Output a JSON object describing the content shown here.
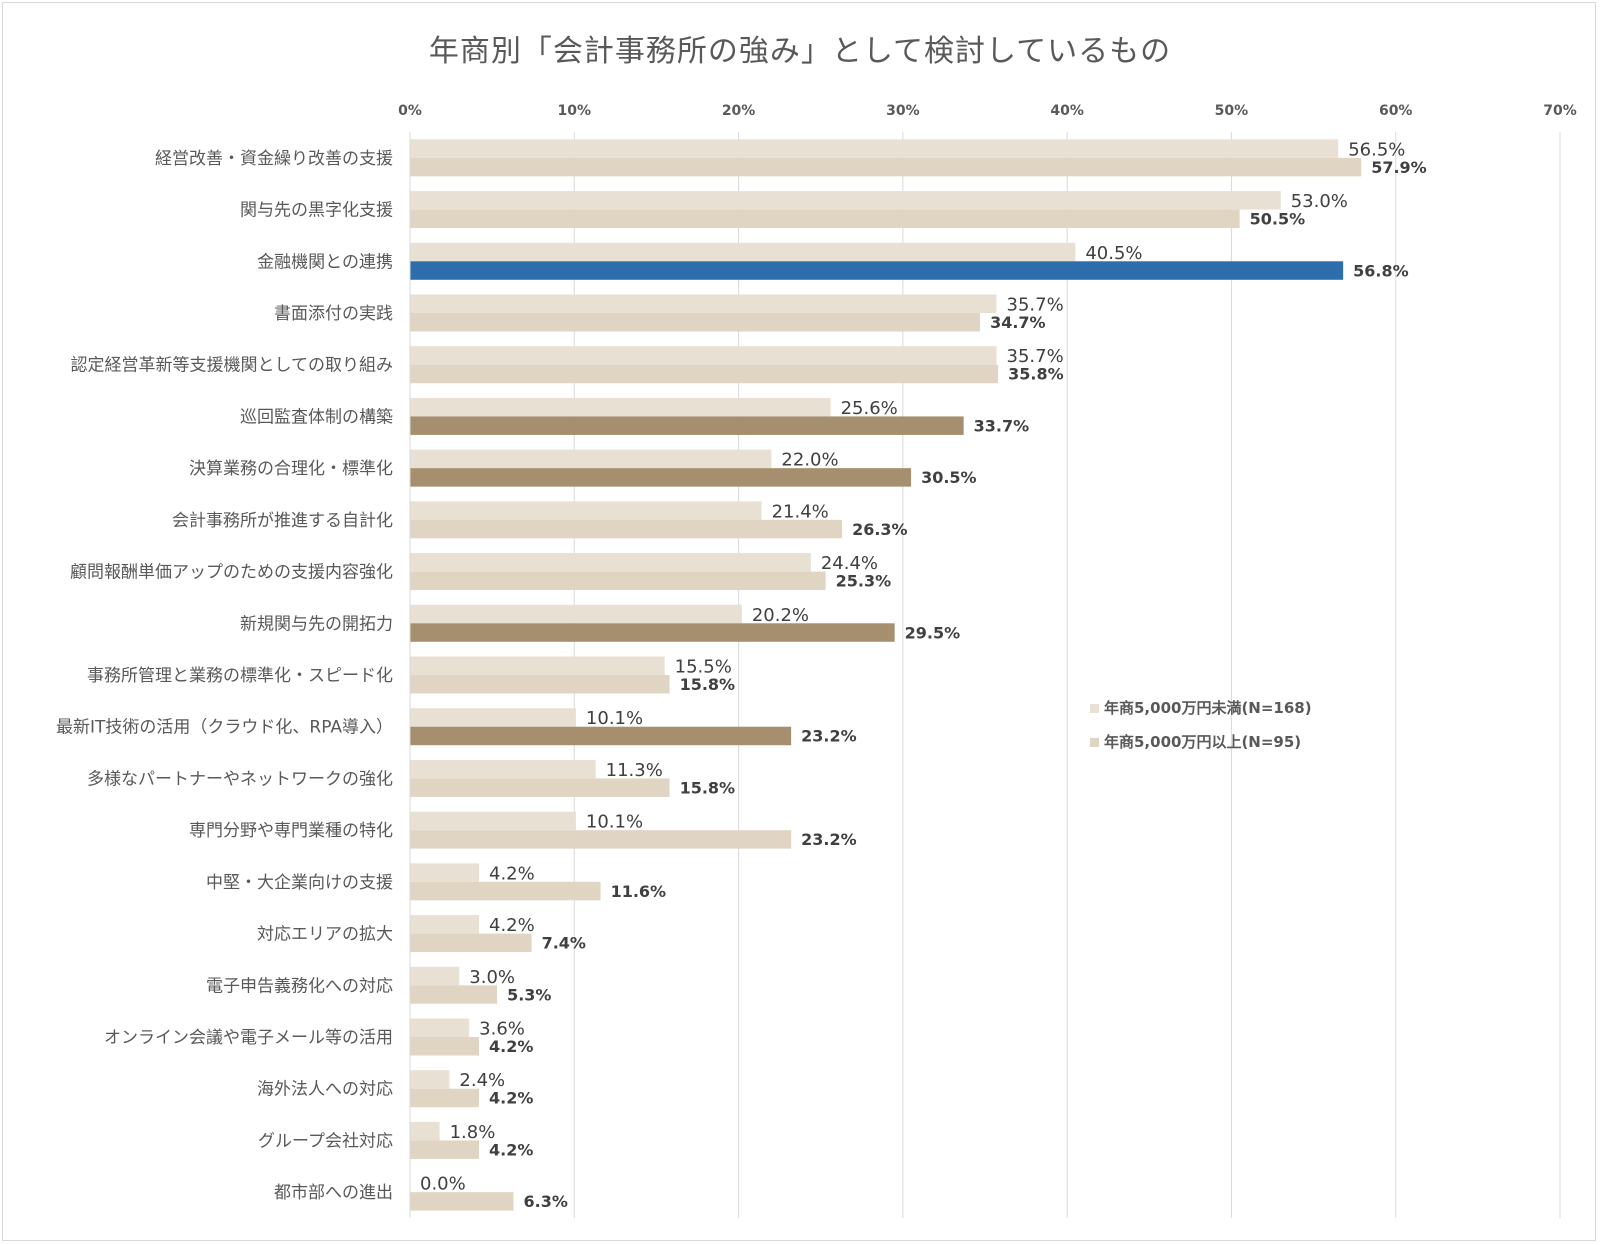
{
  "chart_data": {
    "type": "bar",
    "orientation": "horizontal",
    "title": "年商別「会計事務所の強み」として検討しているもの",
    "xlim": [
      0,
      70
    ],
    "x_ticks": [
      "0%",
      "10%",
      "20%",
      "30%",
      "40%",
      "50%",
      "60%",
      "70%"
    ],
    "grid": true,
    "legend_position": "right",
    "categories": [
      "経営改善・資金繰り改善の支援",
      "関与先の黒字化支援",
      "金融機関との連携",
      "書面添付の実践",
      "認定経営革新等支援機関としての取り組み",
      "巡回監査体制の構築",
      "決算業務の合理化・標準化",
      "会計事務所が推進する自計化",
      "顧問報酬単価アップのための支援内容強化",
      "新規関与先の開拓力",
      "事務所管理と業務の標準化・スピード化",
      "最新IT技術の活用（クラウド化、RPA導入）",
      "多様なパートナーやネットワークの強化",
      "専門分野や専門業種の特化",
      "中堅・大企業向けの支援",
      "対応エリアの拡大",
      "電子申告義務化への対応",
      "オンライン会議や電子メール等の活用",
      "海外法人への対応",
      "グループ会社対応",
      "都市部への進出"
    ],
    "series": [
      {
        "name": "年商5,000万円未満(N=168)",
        "values": [
          56.5,
          53.0,
          40.5,
          35.7,
          35.7,
          25.6,
          22.0,
          21.4,
          24.4,
          20.2,
          15.5,
          10.1,
          11.3,
          10.1,
          4.2,
          4.2,
          3.0,
          3.6,
          2.4,
          1.8,
          0.0
        ],
        "labels": [
          "56.5%",
          "53.0%",
          "40.5%",
          "35.7%",
          "35.7%",
          "25.6%",
          "22.0%",
          "21.4%",
          "24.4%",
          "20.2%",
          "15.5%",
          "10.1%",
          "11.3%",
          "10.1%",
          "4.2%",
          "4.2%",
          "3.0%",
          "3.6%",
          "2.4%",
          "1.8%",
          "0.0%"
        ],
        "color": "#e8e0d3"
      },
      {
        "name": "年商5,000万円以上(N=95)",
        "values": [
          57.9,
          50.5,
          56.8,
          34.7,
          35.8,
          33.7,
          30.5,
          26.3,
          25.3,
          29.5,
          15.8,
          23.2,
          15.8,
          23.2,
          11.6,
          7.4,
          5.3,
          4.2,
          4.2,
          4.2,
          6.3
        ],
        "labels": [
          "57.9%",
          "50.5%",
          "56.8%",
          "34.7%",
          "35.8%",
          "33.7%",
          "30.5%",
          "26.3%",
          "25.3%",
          "29.5%",
          "15.8%",
          "23.2%",
          "15.8%",
          "23.2%",
          "11.6%",
          "7.4%",
          "5.3%",
          "4.2%",
          "4.2%",
          "4.2%",
          "6.3%"
        ],
        "color": "#e0d5c3",
        "highlight_colors": [
          "#e0d5c3",
          "#e0d5c3",
          "#2e6dab",
          "#e0d5c3",
          "#e0d5c3",
          "#a68f6e",
          "#a68f6e",
          "#e0d5c3",
          "#e0d5c3",
          "#a68f6e",
          "#e0d5c3",
          "#a68f6e",
          "#e0d5c3",
          "#e0d5c3",
          "#e0d5c3",
          "#e0d5c3",
          "#e0d5c3",
          "#e0d5c3",
          "#e0d5c3",
          "#e0d5c3",
          "#e0d5c3"
        ]
      }
    ]
  }
}
